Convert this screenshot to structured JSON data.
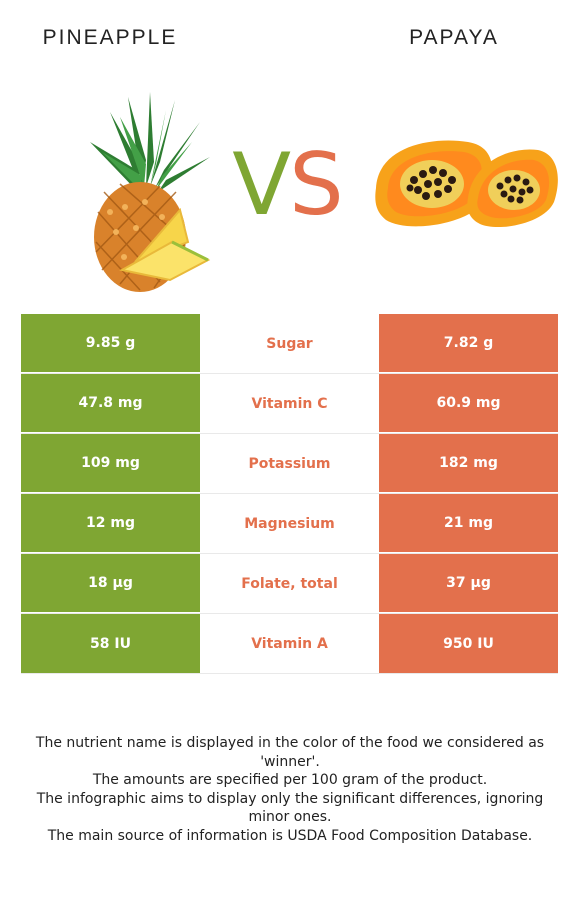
{
  "left_food": {
    "name": "PINEAPPLE",
    "image": "pineapple-image"
  },
  "right_food": {
    "name": "PAPAYA",
    "image": "papaya-image"
  },
  "vs": {
    "v": "V",
    "s": "S"
  },
  "colors": {
    "left": "#7fa633",
    "right": "#e3704c",
    "winner_text_right": "#e3704c"
  },
  "table": {
    "rows": [
      {
        "left": "9.85 g",
        "nutrient": "Sugar",
        "right": "7.82 g",
        "winner": "right"
      },
      {
        "left": "47.8 mg",
        "nutrient": "Vitamin C",
        "right": "60.9 mg",
        "winner": "right"
      },
      {
        "left": "109 mg",
        "nutrient": "Potassium",
        "right": "182 mg",
        "winner": "right"
      },
      {
        "left": "12 mg",
        "nutrient": "Magnesium",
        "right": "21 mg",
        "winner": "right"
      },
      {
        "left": "18 µg",
        "nutrient": "Folate, total",
        "right": "37 µg",
        "winner": "right"
      },
      {
        "left": "58 IU",
        "nutrient": "Vitamin A",
        "right": "950 IU",
        "winner": "right"
      }
    ]
  },
  "footnote": {
    "line1": "The nutrient name is displayed in the color of the food we considered as 'winner'.",
    "line2": "The amounts are specified per 100 gram of the product.",
    "line3": "The infographic aims to display only the significant differences, ignoring minor ones.",
    "line4": "The main source of information is USDA Food Composition Database."
  }
}
